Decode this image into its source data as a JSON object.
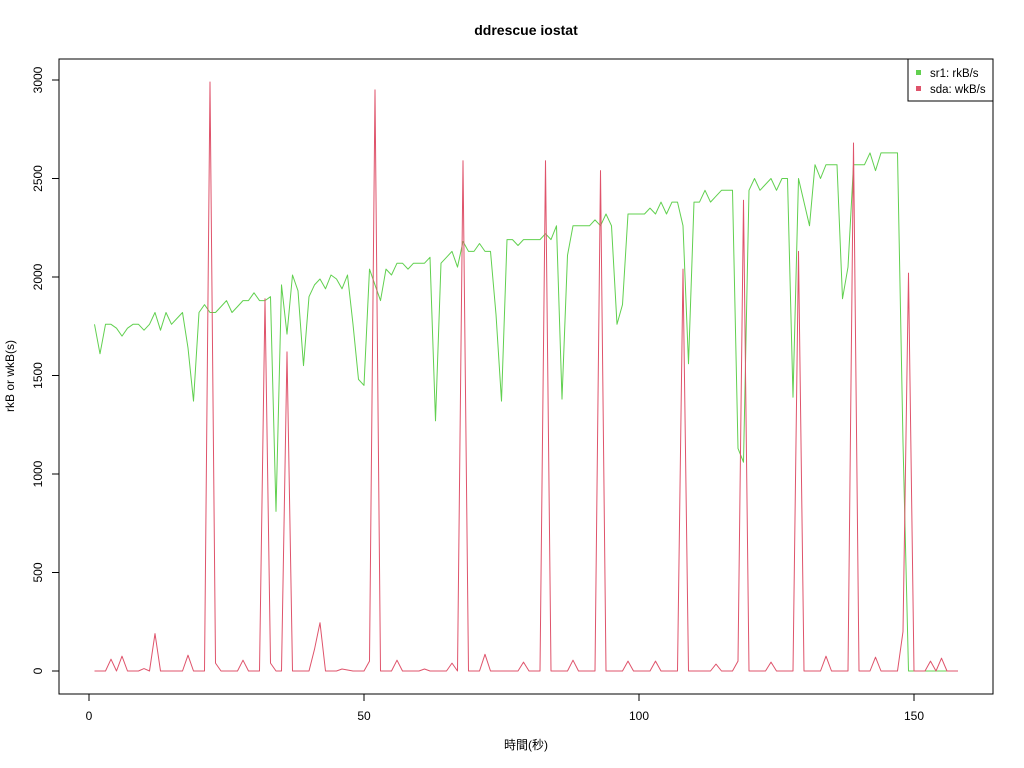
{
  "chart_data": {
    "type": "line",
    "title": "ddrescue iostat",
    "xlabel": "時間(秒)",
    "ylabel": "rkB or wkB(s)",
    "xlim": [
      1,
      158
    ],
    "ylim": [
      0,
      3000
    ],
    "x_ticks": [
      0,
      50,
      100,
      150
    ],
    "y_ticks": [
      0,
      500,
      1000,
      1500,
      2000,
      2500,
      3000
    ],
    "legend": {
      "position": "top-right"
    },
    "series": [
      {
        "name": "sr1: rkB/s",
        "color": "#61D04F",
        "points": [
          [
            1,
            1760
          ],
          [
            2,
            1610
          ],
          [
            3,
            1760
          ],
          [
            4,
            1760
          ],
          [
            5,
            1740
          ],
          [
            6,
            1700
          ],
          [
            7,
            1740
          ],
          [
            8,
            1760
          ],
          [
            9,
            1760
          ],
          [
            10,
            1730
          ],
          [
            11,
            1760
          ],
          [
            12,
            1820
          ],
          [
            13,
            1730
          ],
          [
            14,
            1820
          ],
          [
            15,
            1760
          ],
          [
            16,
            1790
          ],
          [
            17,
            1820
          ],
          [
            18,
            1640
          ],
          [
            19,
            1370
          ],
          [
            20,
            1820
          ],
          [
            21,
            1860
          ],
          [
            22,
            1820
          ],
          [
            23,
            1820
          ],
          [
            24,
            1850
          ],
          [
            25,
            1880
          ],
          [
            26,
            1820
          ],
          [
            27,
            1850
          ],
          [
            28,
            1880
          ],
          [
            29,
            1880
          ],
          [
            30,
            1920
          ],
          [
            31,
            1880
          ],
          [
            32,
            1880
          ],
          [
            33,
            1900
          ],
          [
            34,
            810
          ],
          [
            35,
            1960
          ],
          [
            36,
            1710
          ],
          [
            37,
            2010
          ],
          [
            38,
            1930
          ],
          [
            39,
            1550
          ],
          [
            40,
            1900
          ],
          [
            41,
            1960
          ],
          [
            42,
            1990
          ],
          [
            43,
            1940
          ],
          [
            44,
            2010
          ],
          [
            45,
            1990
          ],
          [
            46,
            1940
          ],
          [
            47,
            2010
          ],
          [
            48,
            1760
          ],
          [
            49,
            1480
          ],
          [
            50,
            1450
          ],
          [
            51,
            2040
          ],
          [
            52,
            1960
          ],
          [
            53,
            1880
          ],
          [
            54,
            2040
          ],
          [
            55,
            2010
          ],
          [
            56,
            2070
          ],
          [
            57,
            2070
          ],
          [
            58,
            2040
          ],
          [
            59,
            2070
          ],
          [
            60,
            2070
          ],
          [
            61,
            2070
          ],
          [
            62,
            2100
          ],
          [
            63,
            1270
          ],
          [
            64,
            2070
          ],
          [
            65,
            2100
          ],
          [
            66,
            2130
          ],
          [
            67,
            2050
          ],
          [
            68,
            2180
          ],
          [
            69,
            2130
          ],
          [
            70,
            2130
          ],
          [
            71,
            2170
          ],
          [
            72,
            2130
          ],
          [
            73,
            2130
          ],
          [
            74,
            1810
          ],
          [
            75,
            1370
          ],
          [
            76,
            2190
          ],
          [
            77,
            2190
          ],
          [
            78,
            2160
          ],
          [
            79,
            2190
          ],
          [
            80,
            2190
          ],
          [
            81,
            2190
          ],
          [
            82,
            2190
          ],
          [
            83,
            2220
          ],
          [
            84,
            2190
          ],
          [
            85,
            2260
          ],
          [
            86,
            1380
          ],
          [
            87,
            2110
          ],
          [
            88,
            2260
          ],
          [
            89,
            2260
          ],
          [
            90,
            2260
          ],
          [
            91,
            2260
          ],
          [
            92,
            2290
          ],
          [
            93,
            2260
          ],
          [
            94,
            2320
          ],
          [
            95,
            2260
          ],
          [
            96,
            1760
          ],
          [
            97,
            1860
          ],
          [
            98,
            2320
          ],
          [
            99,
            2320
          ],
          [
            100,
            2320
          ],
          [
            101,
            2320
          ],
          [
            102,
            2350
          ],
          [
            103,
            2320
          ],
          [
            104,
            2380
          ],
          [
            105,
            2320
          ],
          [
            106,
            2380
          ],
          [
            107,
            2380
          ],
          [
            108,
            2260
          ],
          [
            109,
            1560
          ],
          [
            110,
            2380
          ],
          [
            111,
            2380
          ],
          [
            112,
            2440
          ],
          [
            113,
            2380
          ],
          [
            114,
            2410
          ],
          [
            115,
            2440
          ],
          [
            116,
            2440
          ],
          [
            117,
            2440
          ],
          [
            118,
            1130
          ],
          [
            119,
            1060
          ],
          [
            120,
            2440
          ],
          [
            121,
            2500
          ],
          [
            122,
            2440
          ],
          [
            123,
            2470
          ],
          [
            124,
            2500
          ],
          [
            125,
            2440
          ],
          [
            126,
            2500
          ],
          [
            127,
            2500
          ],
          [
            128,
            1390
          ],
          [
            129,
            2500
          ],
          [
            130,
            2380
          ],
          [
            131,
            2260
          ],
          [
            132,
            2570
          ],
          [
            133,
            2500
          ],
          [
            134,
            2570
          ],
          [
            135,
            2570
          ],
          [
            136,
            2570
          ],
          [
            137,
            1890
          ],
          [
            138,
            2050
          ],
          [
            139,
            2570
          ],
          [
            140,
            2570
          ],
          [
            141,
            2570
          ],
          [
            142,
            2630
          ],
          [
            143,
            2540
          ],
          [
            144,
            2630
          ],
          [
            145,
            2630
          ],
          [
            146,
            2630
          ],
          [
            147,
            2630
          ],
          [
            148,
            1160
          ],
          [
            149,
            0
          ],
          [
            150,
            0
          ],
          [
            151,
            0
          ],
          [
            152,
            0
          ],
          [
            153,
            0
          ],
          [
            154,
            0
          ],
          [
            155,
            0
          ],
          [
            156,
            0
          ],
          [
            157,
            0
          ],
          [
            158,
            0
          ]
        ]
      },
      {
        "name": "sda: wkB/s",
        "color": "#DF536B",
        "points": [
          [
            1,
            0
          ],
          [
            2,
            0
          ],
          [
            3,
            0
          ],
          [
            4,
            60
          ],
          [
            5,
            0
          ],
          [
            6,
            75
          ],
          [
            7,
            0
          ],
          [
            8,
            0
          ],
          [
            9,
            0
          ],
          [
            10,
            12
          ],
          [
            11,
            0
          ],
          [
            12,
            190
          ],
          [
            13,
            0
          ],
          [
            14,
            0
          ],
          [
            15,
            0
          ],
          [
            16,
            0
          ],
          [
            17,
            0
          ],
          [
            18,
            80
          ],
          [
            19,
            0
          ],
          [
            20,
            0
          ],
          [
            21,
            0
          ],
          [
            22,
            2990
          ],
          [
            23,
            40
          ],
          [
            24,
            0
          ],
          [
            25,
            0
          ],
          [
            26,
            0
          ],
          [
            27,
            0
          ],
          [
            28,
            55
          ],
          [
            29,
            0
          ],
          [
            30,
            0
          ],
          [
            31,
            0
          ],
          [
            32,
            1890
          ],
          [
            33,
            40
          ],
          [
            34,
            0
          ],
          [
            35,
            0
          ],
          [
            36,
            1620
          ],
          [
            37,
            0
          ],
          [
            38,
            0
          ],
          [
            39,
            0
          ],
          [
            40,
            0
          ],
          [
            41,
            110
          ],
          [
            42,
            245
          ],
          [
            43,
            0
          ],
          [
            44,
            0
          ],
          [
            45,
            0
          ],
          [
            46,
            10
          ],
          [
            47,
            5
          ],
          [
            48,
            0
          ],
          [
            49,
            0
          ],
          [
            50,
            0
          ],
          [
            51,
            50
          ],
          [
            52,
            2950
          ],
          [
            53,
            0
          ],
          [
            54,
            0
          ],
          [
            55,
            0
          ],
          [
            56,
            55
          ],
          [
            57,
            0
          ],
          [
            58,
            0
          ],
          [
            59,
            0
          ],
          [
            60,
            0
          ],
          [
            61,
            10
          ],
          [
            62,
            0
          ],
          [
            63,
            0
          ],
          [
            64,
            0
          ],
          [
            65,
            0
          ],
          [
            66,
            40
          ],
          [
            67,
            0
          ],
          [
            68,
            2590
          ],
          [
            69,
            0
          ],
          [
            70,
            0
          ],
          [
            71,
            0
          ],
          [
            72,
            85
          ],
          [
            73,
            0
          ],
          [
            74,
            0
          ],
          [
            75,
            0
          ],
          [
            76,
            0
          ],
          [
            77,
            0
          ],
          [
            78,
            0
          ],
          [
            79,
            45
          ],
          [
            80,
            0
          ],
          [
            81,
            0
          ],
          [
            82,
            0
          ],
          [
            83,
            2590
          ],
          [
            84,
            0
          ],
          [
            85,
            0
          ],
          [
            86,
            0
          ],
          [
            87,
            0
          ],
          [
            88,
            55
          ],
          [
            89,
            0
          ],
          [
            90,
            0
          ],
          [
            91,
            0
          ],
          [
            92,
            0
          ],
          [
            93,
            2540
          ],
          [
            94,
            0
          ],
          [
            95,
            0
          ],
          [
            96,
            0
          ],
          [
            97,
            0
          ],
          [
            98,
            50
          ],
          [
            99,
            0
          ],
          [
            100,
            0
          ],
          [
            101,
            0
          ],
          [
            102,
            0
          ],
          [
            103,
            50
          ],
          [
            104,
            0
          ],
          [
            105,
            0
          ],
          [
            106,
            0
          ],
          [
            107,
            0
          ],
          [
            108,
            2040
          ],
          [
            109,
            0
          ],
          [
            110,
            0
          ],
          [
            111,
            0
          ],
          [
            112,
            0
          ],
          [
            113,
            0
          ],
          [
            114,
            35
          ],
          [
            115,
            0
          ],
          [
            116,
            0
          ],
          [
            117,
            0
          ],
          [
            118,
            50
          ],
          [
            119,
            2390
          ],
          [
            120,
            0
          ],
          [
            121,
            0
          ],
          [
            122,
            0
          ],
          [
            123,
            0
          ],
          [
            124,
            45
          ],
          [
            125,
            0
          ],
          [
            126,
            0
          ],
          [
            127,
            0
          ],
          [
            128,
            0
          ],
          [
            129,
            2130
          ],
          [
            130,
            0
          ],
          [
            131,
            0
          ],
          [
            132,
            0
          ],
          [
            133,
            0
          ],
          [
            134,
            75
          ],
          [
            135,
            0
          ],
          [
            136,
            0
          ],
          [
            137,
            0
          ],
          [
            138,
            0
          ],
          [
            139,
            2680
          ],
          [
            140,
            0
          ],
          [
            141,
            0
          ],
          [
            142,
            0
          ],
          [
            143,
            70
          ],
          [
            144,
            0
          ],
          [
            145,
            0
          ],
          [
            146,
            0
          ],
          [
            147,
            0
          ],
          [
            148,
            200
          ],
          [
            149,
            2020
          ],
          [
            150,
            0
          ],
          [
            151,
            0
          ],
          [
            152,
            0
          ],
          [
            153,
            50
          ],
          [
            154,
            0
          ],
          [
            155,
            65
          ],
          [
            156,
            0
          ],
          [
            157,
            0
          ],
          [
            158,
            0
          ]
        ]
      }
    ]
  }
}
